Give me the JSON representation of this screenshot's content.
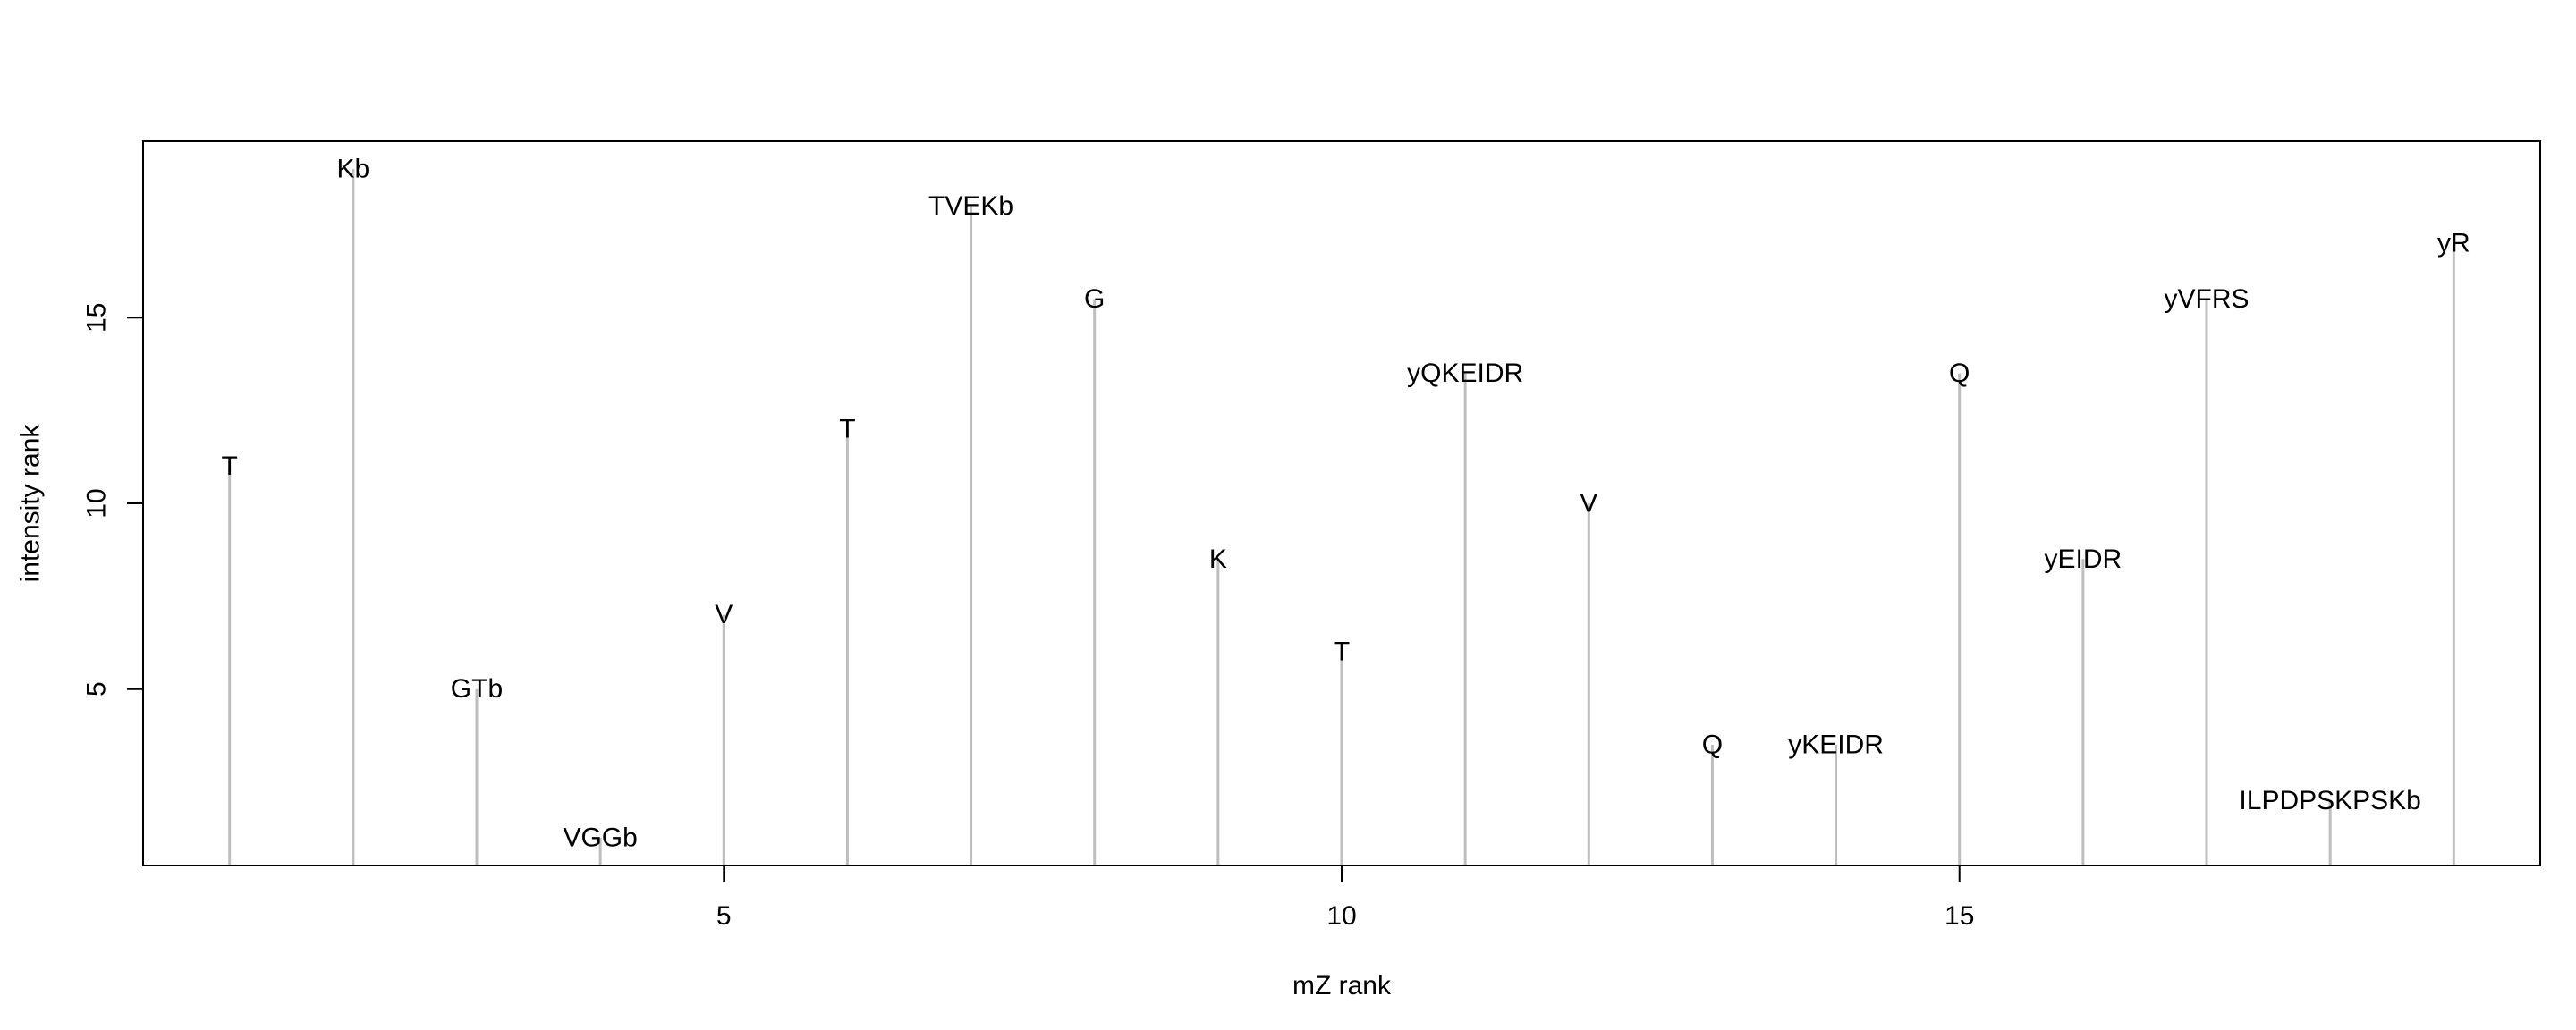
{
  "chart_data": {
    "type": "bar",
    "style": "vertical-lines-with-labels",
    "title": "",
    "xlabel": "mZ rank",
    "ylabel": "intensity rank",
    "xlim": [
      0.3,
      19.7
    ],
    "ylim": [
      0.25,
      19.75
    ],
    "xticks": [
      5,
      10,
      15
    ],
    "yticks": [
      5,
      10,
      15
    ],
    "grid": false,
    "line_color": "#bebebe",
    "points": [
      {
        "x": 1,
        "y": 11,
        "label": "T"
      },
      {
        "x": 2,
        "y": 19,
        "label": "Kb"
      },
      {
        "x": 3,
        "y": 5,
        "label": "GTb"
      },
      {
        "x": 4,
        "y": 1,
        "label": "VGGb"
      },
      {
        "x": 5,
        "y": 7,
        "label": "V"
      },
      {
        "x": 6,
        "y": 12,
        "label": "T"
      },
      {
        "x": 7,
        "y": 18,
        "label": "TVEKb"
      },
      {
        "x": 8,
        "y": 15.5,
        "label": "G"
      },
      {
        "x": 9,
        "y": 8.5,
        "label": "K"
      },
      {
        "x": 10,
        "y": 6,
        "label": "T"
      },
      {
        "x": 11,
        "y": 13.5,
        "label": "yQKEIDR"
      },
      {
        "x": 12,
        "y": 10,
        "label": "V"
      },
      {
        "x": 13,
        "y": 3.5,
        "label": "Q"
      },
      {
        "x": 14,
        "y": 3.5,
        "label": "yKEIDR"
      },
      {
        "x": 15,
        "y": 13.5,
        "label": "Q"
      },
      {
        "x": 16,
        "y": 8.5,
        "label": "yEIDR"
      },
      {
        "x": 17,
        "y": 15.5,
        "label": "yVFRS"
      },
      {
        "x": 18,
        "y": 2,
        "label": "ILPDPSKPSKb"
      },
      {
        "x": 19,
        "y": 17,
        "label": "yR"
      }
    ]
  }
}
